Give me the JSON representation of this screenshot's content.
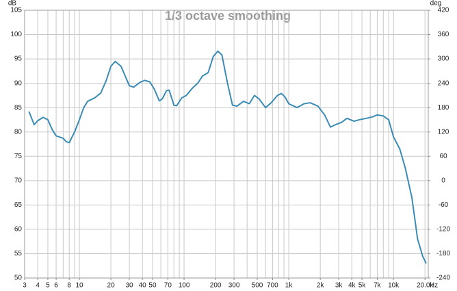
{
  "chart_data": {
    "type": "line",
    "title": "1/3 octave smoothing",
    "y_unit": "dB",
    "y2_unit": "deg",
    "x_unit": "Hz",
    "log_x": true,
    "grid": true,
    "color": "#3a8bb5",
    "xlim": [
      3,
      21500
    ],
    "ylim": [
      50,
      105
    ],
    "y2lim": [
      -240,
      420
    ],
    "xticks": [
      3,
      4,
      5,
      6,
      8,
      10,
      20,
      30,
      40,
      50,
      70,
      100,
      200,
      300,
      500,
      700,
      {
        "value": 1000,
        "label": "1k"
      },
      {
        "value": 2000,
        "label": "2k"
      },
      {
        "value": 3000,
        "label": "3k"
      },
      {
        "value": 4000,
        "label": "4k"
      },
      {
        "value": 5000,
        "label": "5k"
      },
      {
        "value": 7000,
        "label": "7k"
      },
      {
        "value": 10000,
        "label": "10k"
      },
      {
        "value": 20000,
        "label": "20.0k"
      }
    ],
    "xgrid": [
      3,
      4,
      5,
      6,
      7,
      8,
      9,
      10,
      20,
      30,
      40,
      50,
      60,
      70,
      80,
      90,
      100,
      200,
      300,
      400,
      500,
      600,
      700,
      800,
      900,
      1000,
      2000,
      3000,
      4000,
      5000,
      6000,
      7000,
      8000,
      9000,
      10000,
      20000
    ],
    "yticks": [
      50,
      55,
      60,
      65,
      70,
      75,
      80,
      85,
      90,
      95,
      100,
      105
    ],
    "y2ticks": [
      -240,
      -180,
      -120,
      -60,
      0,
      60,
      120,
      180,
      240,
      300,
      360,
      420
    ],
    "x": [
      3.3,
      3.7,
      4.0,
      4.5,
      5.0,
      5.5,
      6.0,
      7.0,
      7.5,
      8.0,
      9.0,
      10,
      11,
      12,
      14,
      16,
      18,
      20,
      22,
      25,
      30,
      33,
      38,
      42,
      47,
      52,
      58,
      62,
      68,
      72,
      80,
      85,
      95,
      105,
      120,
      135,
      150,
      170,
      190,
      210,
      230,
      260,
      290,
      320,
      370,
      420,
      470,
      520,
      600,
      680,
      780,
      850,
      920,
      1000,
      1200,
      1400,
      1600,
      1900,
      2200,
      2500,
      2800,
      3200,
      3600,
      4200,
      4700,
      5500,
      6300,
      7000,
      8000,
      9000,
      10000,
      11500,
      13000,
      15000,
      17000,
      19000,
      20500
    ],
    "values": [
      84.2,
      81.5,
      82.3,
      83.0,
      82.5,
      80.5,
      79.2,
      78.7,
      78.0,
      77.8,
      80.0,
      82.5,
      85.0,
      86.3,
      87.0,
      88.0,
      90.5,
      93.5,
      94.5,
      93.5,
      89.5,
      89.2,
      90.2,
      90.6,
      90.3,
      88.8,
      86.4,
      86.8,
      88.5,
      88.6,
      85.5,
      85.4,
      87.0,
      87.5,
      89.0,
      90.0,
      91.5,
      92.2,
      95.5,
      96.6,
      95.8,
      90.0,
      85.5,
      85.3,
      86.3,
      85.8,
      87.5,
      86.8,
      85.0,
      86.0,
      87.5,
      87.9,
      87.2,
      85.8,
      85.0,
      85.8,
      86.0,
      85.3,
      83.5,
      81.0,
      81.5,
      82.0,
      82.8,
      82.2,
      82.5,
      82.8,
      83.1,
      83.5,
      83.3,
      82.5,
      79.0,
      76.5,
      72.5,
      66.5,
      58.0,
      54.5,
      53.0
    ]
  }
}
